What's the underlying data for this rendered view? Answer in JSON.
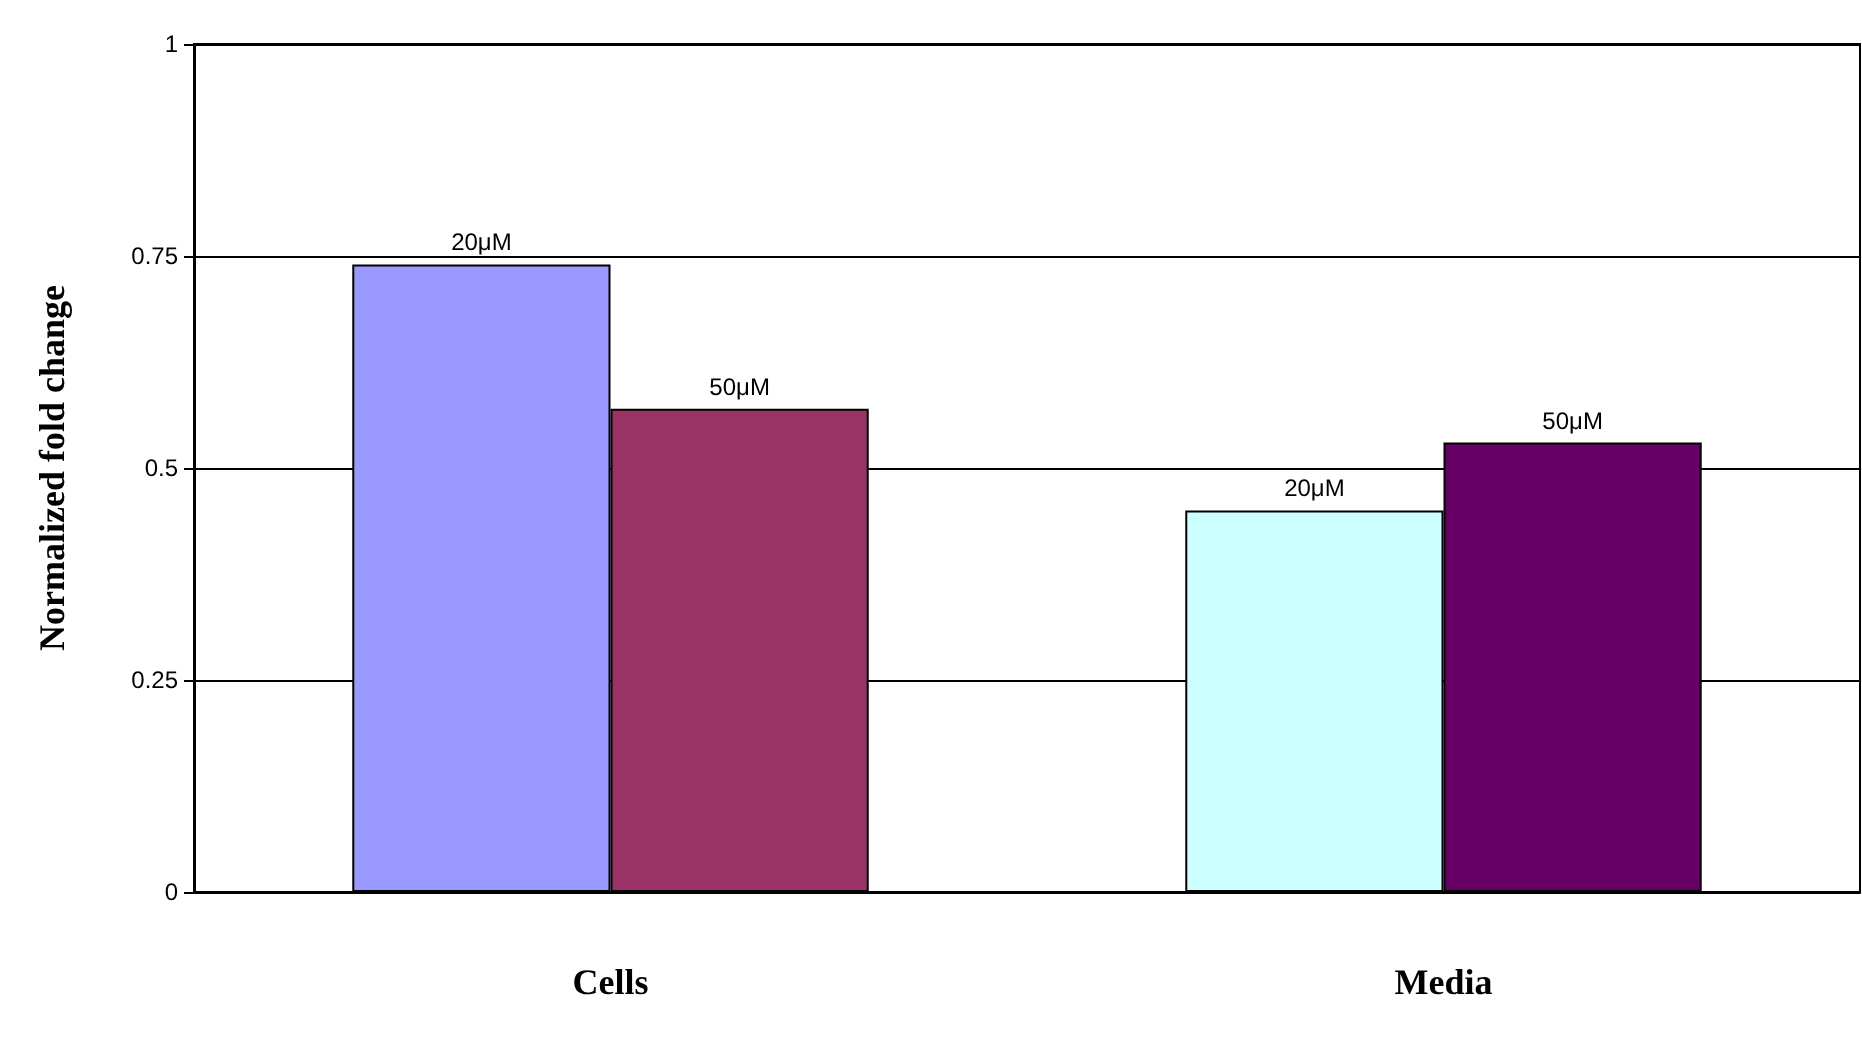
{
  "chart_data": {
    "type": "bar",
    "ylabel": "Normalized fold change",
    "categories": [
      "Cells",
      "Media"
    ],
    "series": [
      {
        "name": "20μM",
        "colors": [
          "#9999ff",
          "#ccffff"
        ],
        "values": [
          0.74,
          0.45
        ]
      },
      {
        "name": "50μM",
        "colors": [
          "#993366",
          "#660066"
        ],
        "values": [
          0.57,
          0.53
        ]
      }
    ],
    "ylim": [
      0,
      1
    ],
    "yticks": [
      0,
      0.25,
      0.5,
      0.75,
      1
    ],
    "grid": "y"
  }
}
